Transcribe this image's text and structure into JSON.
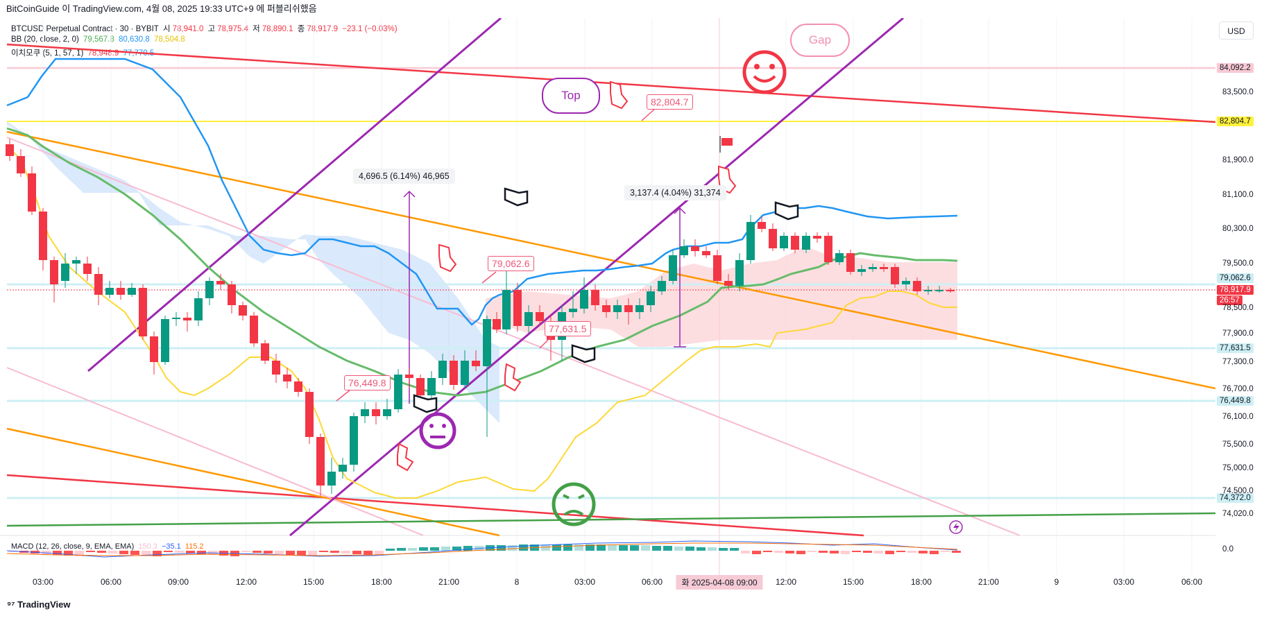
{
  "header": {
    "text": "BitCoinGuide 이 TradingView.com, 4월 08, 2025 19:33 UTC+9 에 퍼블리쉬했음"
  },
  "symbol_legend": {
    "name": "BTCUSD Perpetual Contract · 30 · BYBIT",
    "open_label": "시",
    "open": "78,941.0",
    "high_label": "고",
    "high": "78,975.4",
    "low_label": "저",
    "low": "78,890.1",
    "close_label": "종",
    "close": "78,917.9",
    "change": "−23.1 (−0.03%)"
  },
  "bb_legend": {
    "name": "BB (20, close, 2, 0)",
    "basis": "79,567.8",
    "upper": "80,630.8",
    "lower": "78,504.8"
  },
  "ichimoku_legend": {
    "name": "이치모쿠 (5, 1, 57, 1)",
    "v1": "78,948.9",
    "v2": "77,770.5"
  },
  "macd_legend": {
    "name": "MACD (12, 26, close, 9, EMA, EMA)",
    "v1": "150.3",
    "v2": "−35.1",
    "v3": "115.2"
  },
  "currency": "USD",
  "price_axis": {
    "labels": [
      "83,500.0",
      "81,900.0",
      "81,100.0",
      "80,300.0",
      "79,500.0",
      "78,500.0",
      "77,900.0",
      "77,300.0",
      "76,700.0",
      "76,100.0",
      "75,500.0",
      "75,000.0",
      "74,500.0",
      "74,020.0",
      "0.0"
    ],
    "badges": [
      {
        "text": "84,092.2",
        "bg": "#f8c9d4",
        "fg": "#131722"
      },
      {
        "text": "82,804.7",
        "bg": "#fff13b",
        "fg": "#131722"
      },
      {
        "text": "79,062.6",
        "bg": "#cdeff4",
        "fg": "#131722"
      },
      {
        "text": "78,917.9",
        "bg": "#f23645",
        "fg": "#ffffff"
      },
      {
        "text": "26:57",
        "bg": "#f23645",
        "fg": "#ffffff"
      },
      {
        "text": "77,631.5",
        "bg": "#cdeff4",
        "fg": "#131722"
      },
      {
        "text": "76,449.8",
        "bg": "#cdeff4",
        "fg": "#131722"
      },
      {
        "text": "74,372.0",
        "bg": "#cdeff4",
        "fg": "#131722"
      }
    ]
  },
  "time_axis": {
    "labels": [
      "03:00",
      "06:00",
      "09:00",
      "12:00",
      "15:00",
      "18:00",
      "21:00",
      "8",
      "03:00",
      "06:00",
      "12:00",
      "15:00",
      "18:00",
      "21:00",
      "9",
      "03:00",
      "06:00"
    ],
    "selected": "화 2025-04-08  09:00"
  },
  "annotations": {
    "callouts": [
      "82,804.7",
      "79,062.6",
      "77,631.5",
      "76,449.8"
    ],
    "measure1": "4,696.5 (6.14%) 46,965",
    "measure2": "3,137.4 (4.04%) 31,374",
    "bubble_top": "Top",
    "bubble_gap": "Gap"
  },
  "footer": {
    "logo_text": "TradingView"
  },
  "colors": {
    "up": "#089981",
    "down": "#f23645",
    "bb_basis": "#4caf50",
    "bb_upper": "#2196f3",
    "bb_lower": "#fdd835",
    "purple": "#9c27b0",
    "orange": "#ff9800"
  }
}
